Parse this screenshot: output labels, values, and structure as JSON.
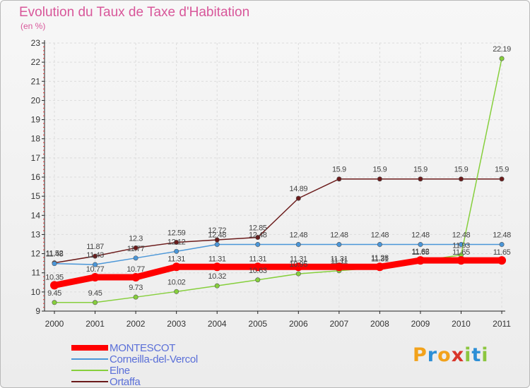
{
  "title": "Evolution du Taux de Taxe d'Habitation",
  "subtitle": "(en %)",
  "logo": {
    "letters": [
      "P",
      "r",
      "o",
      "x",
      "i",
      "t",
      "i"
    ],
    "colors": [
      "#f2a21b",
      "#2d8fd6",
      "#f2a21b",
      "#d8352a",
      "#8cc63f",
      "#2d8fd6",
      "#8cc63f"
    ]
  },
  "chart_data": {
    "type": "line",
    "title": "Evolution du Taux de Taxe d'Habitation",
    "ylabel": "(en %)",
    "xlabel": "",
    "ylim": [
      9,
      23
    ],
    "yticks": [
      9,
      10,
      11,
      12,
      13,
      14,
      15,
      16,
      17,
      18,
      19,
      20,
      21,
      22,
      23
    ],
    "categories": [
      "2000",
      "2001",
      "2002",
      "2003",
      "2004",
      "2005",
      "2006",
      "2007",
      "2008",
      "2009",
      "2010",
      "2011"
    ],
    "grid": true,
    "legend": "bottom-left",
    "series": [
      {
        "name": "MONTESCOT",
        "color": "#ff0000",
        "values": [
          10.35,
          10.77,
          10.77,
          11.31,
          11.31,
          11.31,
          11.31,
          11.31,
          11.31,
          11.65,
          11.65,
          11.65
        ],
        "labels": [
          "10.35",
          "10.77",
          "10.77",
          "11.31",
          "11.31",
          "11.31",
          "11.31",
          "11.31",
          "11.31",
          "11.65",
          "11.65",
          "11.65"
        ]
      },
      {
        "name": "Corneilla-del-Vercol",
        "color": "#4a96d8",
        "values": [
          11.48,
          11.43,
          11.77,
          12.12,
          12.48,
          12.48,
          12.48,
          12.48,
          12.48,
          12.48,
          12.48,
          12.48
        ],
        "labels": [
          "11.48",
          "11.43",
          "11.77",
          "12.12",
          "12.48",
          "12.48",
          "12.48",
          "12.48",
          "12.48",
          "12.48",
          "12.48",
          "12.48"
        ]
      },
      {
        "name": "Elne",
        "color": "#86cf3c",
        "values": [
          9.45,
          9.45,
          9.73,
          10.02,
          10.32,
          10.63,
          10.95,
          11.11,
          11.28,
          11.62,
          11.93,
          22.19
        ],
        "labels": [
          "9.45",
          "9.45",
          "9.73",
          "10.02",
          "10.32",
          "10.63",
          "10.95",
          "11.11",
          "11.28",
          "11.62",
          "11.93",
          "22.19"
        ]
      },
      {
        "name": "Ortaffa",
        "color": "#6b1a1a",
        "values": [
          11.52,
          11.87,
          12.3,
          12.59,
          12.72,
          12.85,
          14.89,
          15.9,
          15.9,
          15.9,
          15.9,
          15.9
        ],
        "labels": [
          "11.52",
          "11.87",
          "12.3",
          "12.59",
          "12.72",
          "12.85",
          "14.89",
          "15.9",
          "15.9",
          "15.9",
          "15.9",
          "15.9"
        ]
      }
    ]
  }
}
